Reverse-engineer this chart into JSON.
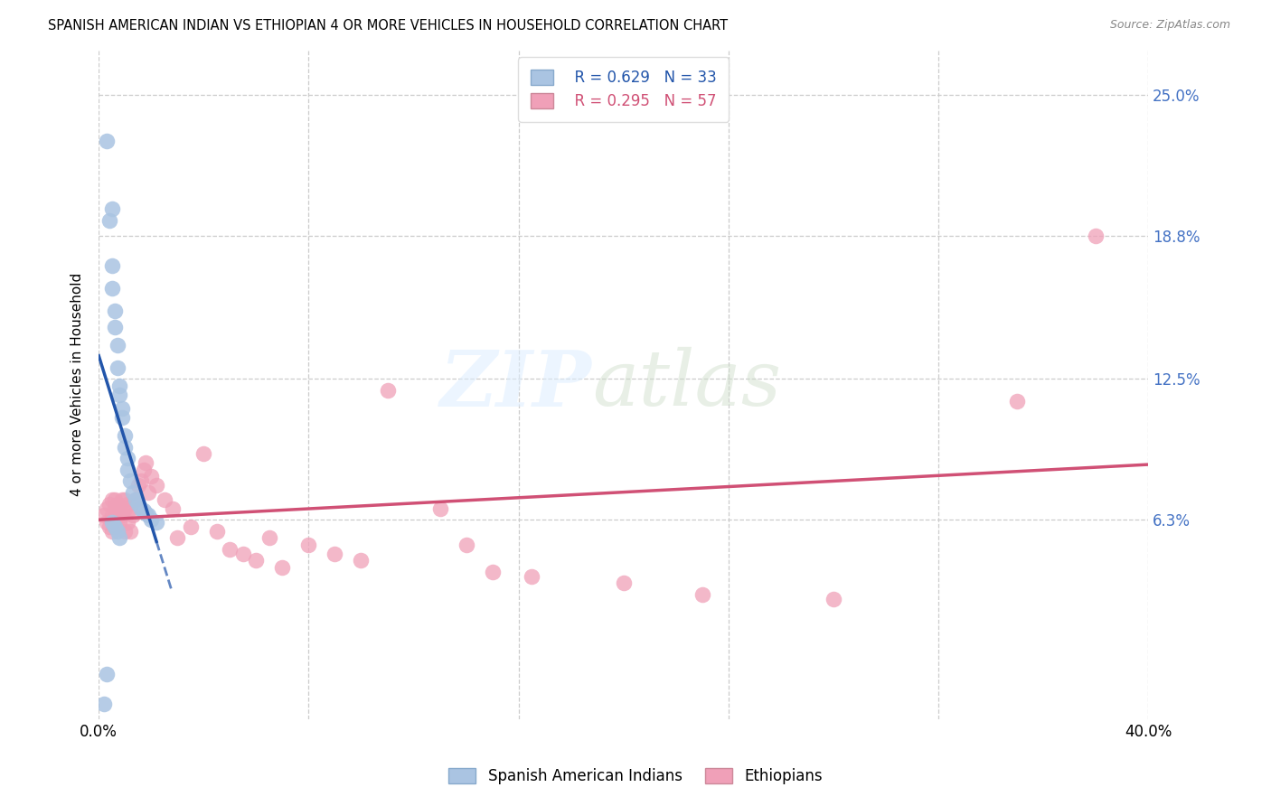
{
  "title": "SPANISH AMERICAN INDIAN VS ETHIOPIAN 4 OR MORE VEHICLES IN HOUSEHOLD CORRELATION CHART",
  "source": "Source: ZipAtlas.com",
  "ylabel": "4 or more Vehicles in Household",
  "xmin": 0.0,
  "xmax": 0.4,
  "ymin": -0.025,
  "ymax": 0.27,
  "ytick_vals": [
    0.063,
    0.125,
    0.188,
    0.25
  ],
  "ytick_labels": [
    "6.3%",
    "12.5%",
    "18.8%",
    "25.0%"
  ],
  "xtick_vals": [
    0.0,
    0.4
  ],
  "xtick_labels": [
    "0.0%",
    "40.0%"
  ],
  "legend_blue_r": "R = 0.629",
  "legend_blue_n": "N = 33",
  "legend_pink_r": "R = 0.295",
  "legend_pink_n": "N = 57",
  "blue_scatter_color": "#aac4e2",
  "blue_line_color": "#2255aa",
  "pink_scatter_color": "#f0a0b8",
  "pink_line_color": "#d05075",
  "blue_x": [
    0.003,
    0.004,
    0.005,
    0.005,
    0.006,
    0.006,
    0.007,
    0.007,
    0.008,
    0.008,
    0.009,
    0.009,
    0.01,
    0.01,
    0.011,
    0.011,
    0.012,
    0.013,
    0.014,
    0.015,
    0.016,
    0.017,
    0.018,
    0.019,
    0.02,
    0.022,
    0.005,
    0.006,
    0.007,
    0.008,
    0.003,
    0.002,
    0.005
  ],
  "blue_y": [
    0.23,
    0.195,
    0.175,
    0.165,
    0.155,
    0.148,
    0.14,
    0.13,
    0.122,
    0.118,
    0.112,
    0.108,
    0.1,
    0.095,
    0.09,
    0.085,
    0.08,
    0.075,
    0.072,
    0.07,
    0.068,
    0.067,
    0.066,
    0.065,
    0.063,
    0.062,
    0.062,
    0.06,
    0.058,
    0.055,
    -0.005,
    -0.018,
    0.2
  ],
  "pink_x": [
    0.002,
    0.003,
    0.003,
    0.004,
    0.004,
    0.005,
    0.005,
    0.005,
    0.006,
    0.006,
    0.006,
    0.007,
    0.007,
    0.008,
    0.008,
    0.009,
    0.009,
    0.01,
    0.01,
    0.01,
    0.011,
    0.011,
    0.012,
    0.012,
    0.013,
    0.014,
    0.015,
    0.016,
    0.017,
    0.018,
    0.019,
    0.02,
    0.022,
    0.025,
    0.028,
    0.03,
    0.035,
    0.04,
    0.045,
    0.05,
    0.055,
    0.06,
    0.065,
    0.07,
    0.08,
    0.09,
    0.1,
    0.11,
    0.13,
    0.14,
    0.15,
    0.165,
    0.2,
    0.23,
    0.28,
    0.35,
    0.38
  ],
  "pink_y": [
    0.065,
    0.068,
    0.062,
    0.07,
    0.06,
    0.072,
    0.065,
    0.058,
    0.068,
    0.072,
    0.06,
    0.065,
    0.07,
    0.068,
    0.062,
    0.072,
    0.065,
    0.068,
    0.072,
    0.058,
    0.07,
    0.062,
    0.068,
    0.058,
    0.065,
    0.072,
    0.078,
    0.08,
    0.085,
    0.088,
    0.075,
    0.082,
    0.078,
    0.072,
    0.068,
    0.055,
    0.06,
    0.092,
    0.058,
    0.05,
    0.048,
    0.045,
    0.055,
    0.042,
    0.052,
    0.048,
    0.045,
    0.12,
    0.068,
    0.052,
    0.04,
    0.038,
    0.035,
    0.03,
    0.028,
    0.115,
    0.188
  ]
}
